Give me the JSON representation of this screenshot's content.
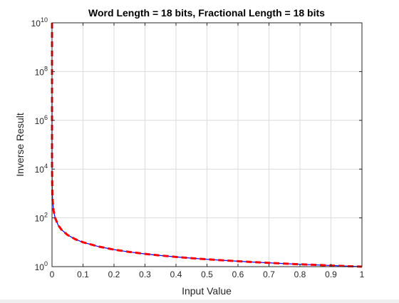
{
  "chart_data": {
    "type": "line",
    "title": "Word Length = 18 bits, Fractional Length = 18 bits",
    "xlabel": "Input Value",
    "ylabel": "Inverse Result",
    "xlim": [
      0,
      1
    ],
    "ylim": [
      1,
      10000000000
    ],
    "yscale": "log",
    "grid": true,
    "x_ticks": [
      0,
      0.1,
      0.2,
      0.3,
      0.4,
      0.5,
      0.6,
      0.7,
      0.8,
      0.9,
      1
    ],
    "x_tick_labels": [
      "0",
      "0.1",
      "0.2",
      "0.3",
      "0.4",
      "0.5",
      "0.6",
      "0.7",
      "0.8",
      "0.9",
      "1"
    ],
    "y_ticks": [
      {
        "value": 1,
        "base": "10",
        "exp": "0"
      },
      {
        "value": 100,
        "base": "10",
        "exp": "2"
      },
      {
        "value": 10000,
        "base": "10",
        "exp": "4"
      },
      {
        "value": 1000000,
        "base": "10",
        "exp": "6"
      },
      {
        "value": 100000000,
        "base": "10",
        "exp": "8"
      },
      {
        "value": 10000000000,
        "base": "10",
        "exp": "10"
      }
    ],
    "series": [
      {
        "color": "#0000ff",
        "style": "solid",
        "x": [
          1e-07,
          1e-06,
          1e-05,
          0.0001,
          0.001,
          0.002,
          0.005,
          0.01,
          0.02,
          0.03,
          0.05,
          0.075,
          0.1,
          0.15,
          0.2,
          0.25,
          0.3,
          0.35,
          0.4,
          0.45,
          0.5,
          0.55,
          0.6,
          0.65,
          0.7,
          0.75,
          0.8,
          0.85,
          0.9,
          0.95,
          1.0
        ],
        "y": [
          10000000,
          1000000,
          100000,
          10000,
          1000,
          500,
          200,
          100,
          50,
          33.3,
          20,
          13.3,
          10,
          6.67,
          5,
          4,
          3.33,
          2.86,
          2.5,
          2.22,
          2,
          1.82,
          1.67,
          1.54,
          1.43,
          1.33,
          1.25,
          1.18,
          1.11,
          1.05,
          1.0
        ]
      },
      {
        "color": "#ff0000",
        "style": "dashed",
        "x": [
          1e-10,
          1e-09,
          1e-08,
          1e-07,
          1e-06,
          1e-05,
          0.0001,
          0.001,
          0.002,
          0.005,
          0.01,
          0.02,
          0.03,
          0.05,
          0.075,
          0.1,
          0.15,
          0.2,
          0.25,
          0.3,
          0.35,
          0.4,
          0.45,
          0.5,
          0.55,
          0.6,
          0.65,
          0.7,
          0.75,
          0.8,
          0.85,
          0.9,
          0.95,
          1.0
        ],
        "y": [
          10000000000,
          1000000000,
          100000000,
          10000000,
          1000000,
          100000,
          10000,
          1000,
          500,
          200,
          100,
          50,
          33.3,
          20,
          13.3,
          10,
          6.67,
          5,
          4,
          3.33,
          2.86,
          2.5,
          2.22,
          2,
          1.82,
          1.67,
          1.54,
          1.43,
          1.33,
          1.25,
          1.18,
          1.11,
          1.05,
          1.0
        ]
      }
    ]
  }
}
